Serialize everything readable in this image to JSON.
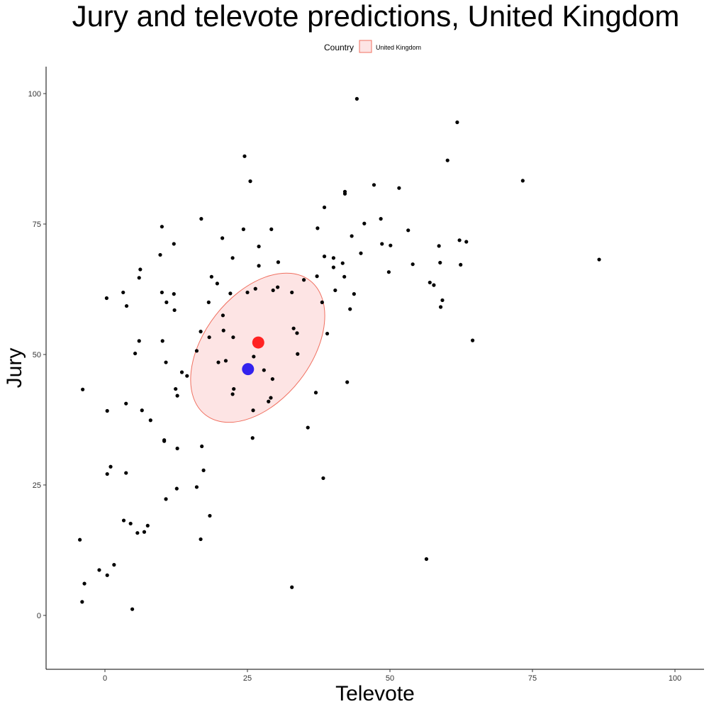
{
  "chart_data": {
    "type": "scatter",
    "title": "Jury and televote predictions, United Kingdom",
    "xlabel": "Televote",
    "ylabel": "Jury",
    "xlim": [
      -10,
      105
    ],
    "ylim": [
      -10,
      105
    ],
    "x_ticks": [
      0,
      25,
      50,
      75,
      100
    ],
    "y_ticks": [
      0,
      25,
      50,
      75,
      100
    ],
    "x_tick_labels": [
      "0",
      "25",
      "50",
      "75",
      "100"
    ],
    "y_tick_labels": [
      "0",
      "25",
      "50",
      "75",
      "100"
    ],
    "grid": false,
    "legend": {
      "position": "top",
      "title": "Country",
      "entries": [
        {
          "label": "United Kingdom",
          "fill": "#fde4e4",
          "stroke": "#f07060"
        }
      ]
    },
    "ellipse": {
      "group": "United Kingdom",
      "center": [
        26.8,
        51.3
      ],
      "fill": "#fde4e4",
      "stroke": "#f07060"
    },
    "highlight_points": [
      {
        "x": 26.9,
        "y": 52.3,
        "color": "#ff2222"
      },
      {
        "x": 25.1,
        "y": 47.2,
        "color": "#3322ee"
      }
    ],
    "points": [
      [
        44.2,
        99.0
      ],
      [
        61.8,
        94.5
      ],
      [
        60.1,
        87.2
      ],
      [
        24.5,
        88.0
      ],
      [
        25.5,
        83.2
      ],
      [
        73.3,
        83.3
      ],
      [
        47.2,
        82.5
      ],
      [
        51.6,
        81.9
      ],
      [
        42.1,
        81.2
      ],
      [
        42.1,
        80.8
      ],
      [
        38.5,
        78.2
      ],
      [
        16.9,
        76.0
      ],
      [
        48.4,
        76.0
      ],
      [
        45.5,
        75.1
      ],
      [
        10.0,
        74.5
      ],
      [
        24.3,
        74.0
      ],
      [
        29.2,
        74.0
      ],
      [
        37.3,
        74.2
      ],
      [
        53.2,
        73.8
      ],
      [
        43.3,
        72.7
      ],
      [
        20.6,
        72.3
      ],
      [
        62.2,
        71.9
      ],
      [
        63.4,
        71.6
      ],
      [
        12.1,
        71.2
      ],
      [
        48.6,
        71.2
      ],
      [
        50.1,
        70.9
      ],
      [
        58.6,
        70.8
      ],
      [
        27.0,
        70.7
      ],
      [
        9.7,
        69.1
      ],
      [
        44.9,
        69.4
      ],
      [
        22.4,
        68.5
      ],
      [
        38.5,
        68.8
      ],
      [
        40.1,
        68.5
      ],
      [
        86.7,
        68.2
      ],
      [
        30.4,
        67.7
      ],
      [
        41.7,
        67.5
      ],
      [
        54.0,
        67.3
      ],
      [
        58.8,
        67.6
      ],
      [
        62.4,
        67.2
      ],
      [
        27.0,
        67.0
      ],
      [
        40.1,
        66.7
      ],
      [
        6.2,
        66.3
      ],
      [
        49.8,
        65.8
      ],
      [
        6.0,
        64.7
      ],
      [
        18.7,
        64.9
      ],
      [
        37.2,
        65.0
      ],
      [
        42.0,
        64.9
      ],
      [
        34.9,
        64.3
      ],
      [
        19.7,
        63.6
      ],
      [
        57.0,
        63.8
      ],
      [
        57.7,
        63.3
      ],
      [
        30.3,
        62.9
      ],
      [
        26.4,
        62.6
      ],
      [
        29.5,
        62.3
      ],
      [
        40.4,
        62.3
      ],
      [
        3.2,
        61.9
      ],
      [
        10.0,
        61.9
      ],
      [
        12.1,
        61.6
      ],
      [
        22.0,
        61.7
      ],
      [
        25.0,
        61.9
      ],
      [
        32.8,
        61.9
      ],
      [
        43.7,
        61.6
      ],
      [
        0.3,
        60.8
      ],
      [
        59.2,
        60.4
      ],
      [
        10.8,
        60.0
      ],
      [
        18.2,
        60.0
      ],
      [
        38.1,
        60.0
      ],
      [
        3.8,
        59.3
      ],
      [
        12.2,
        58.5
      ],
      [
        43.0,
        58.7
      ],
      [
        58.9,
        59.1
      ],
      [
        20.7,
        57.5
      ],
      [
        33.1,
        55.0
      ],
      [
        20.8,
        54.6
      ],
      [
        16.8,
        54.4
      ],
      [
        33.7,
        54.1
      ],
      [
        39.0,
        54.0
      ],
      [
        18.3,
        53.3
      ],
      [
        22.5,
        53.3
      ],
      [
        6.0,
        52.6
      ],
      [
        10.1,
        52.6
      ],
      [
        64.5,
        52.7
      ],
      [
        16.1,
        50.7
      ],
      [
        5.3,
        50.2
      ],
      [
        33.8,
        50.1
      ],
      [
        26.1,
        49.6
      ],
      [
        10.7,
        48.5
      ],
      [
        19.9,
        48.5
      ],
      [
        21.2,
        48.8
      ],
      [
        27.9,
        47.0
      ],
      [
        13.5,
        46.6
      ],
      [
        14.4,
        45.9
      ],
      [
        29.4,
        45.3
      ],
      [
        42.5,
        44.7
      ],
      [
        12.4,
        43.4
      ],
      [
        22.6,
        43.4
      ],
      [
        -3.9,
        43.3
      ],
      [
        22.4,
        42.4
      ],
      [
        12.7,
        42.1
      ],
      [
        37.0,
        42.7
      ],
      [
        29.1,
        41.7
      ],
      [
        28.7,
        41.0
      ],
      [
        3.7,
        40.6
      ],
      [
        0.4,
        39.2
      ],
      [
        6.5,
        39.3
      ],
      [
        26.0,
        39.3
      ],
      [
        8.0,
        37.4
      ],
      [
        35.6,
        36.0
      ],
      [
        25.9,
        34.0
      ],
      [
        10.4,
        33.6
      ],
      [
        10.4,
        33.4
      ],
      [
        17.0,
        32.4
      ],
      [
        12.7,
        32.0
      ],
      [
        1.0,
        28.5
      ],
      [
        17.3,
        27.8
      ],
      [
        0.4,
        27.1
      ],
      [
        3.7,
        27.3
      ],
      [
        38.3,
        26.3
      ],
      [
        12.6,
        24.3
      ],
      [
        16.1,
        24.6
      ],
      [
        10.7,
        22.3
      ],
      [
        18.4,
        19.1
      ],
      [
        3.3,
        18.2
      ],
      [
        4.5,
        17.6
      ],
      [
        7.5,
        17.2
      ],
      [
        5.7,
        15.8
      ],
      [
        6.9,
        16.0
      ],
      [
        -4.4,
        14.5
      ],
      [
        16.8,
        14.6
      ],
      [
        56.4,
        10.8
      ],
      [
        1.6,
        9.7
      ],
      [
        -1.0,
        8.7
      ],
      [
        0.4,
        7.7
      ],
      [
        -3.6,
        6.1
      ],
      [
        32.8,
        5.4
      ],
      [
        -4.0,
        2.6
      ],
      [
        4.8,
        1.2
      ]
    ]
  }
}
